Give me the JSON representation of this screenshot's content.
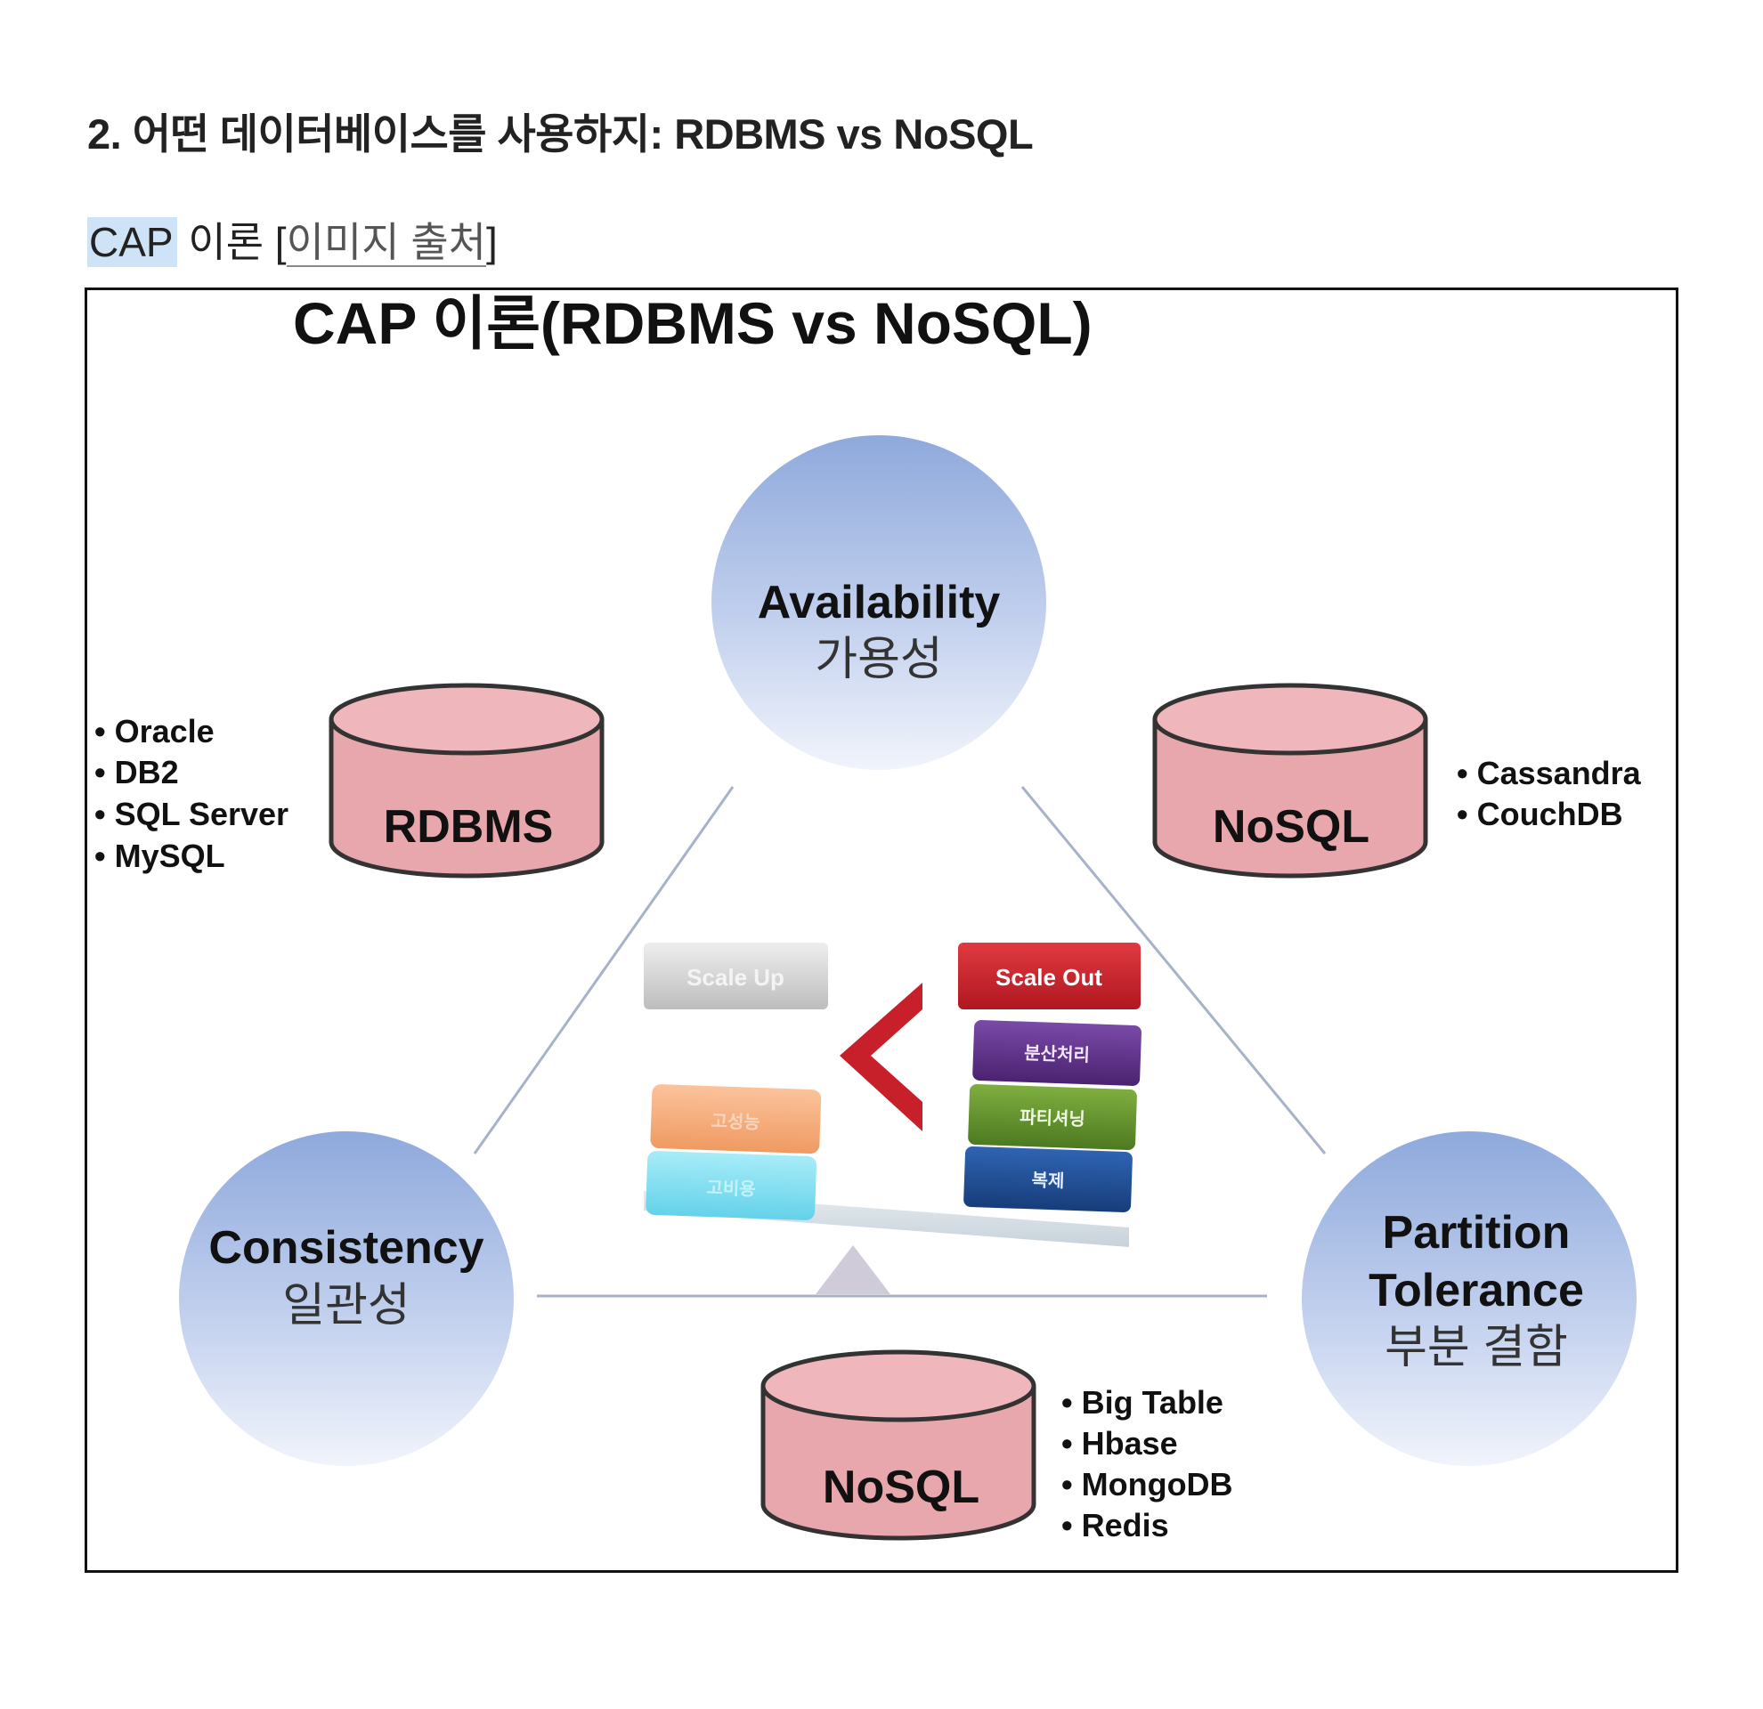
{
  "article": {
    "heading": "2. 어떤 데이터베이스를 사용하지: RDBMS vs NoSQL",
    "caption": {
      "highlighted": "CAP",
      "text": " 이론 [",
      "link": "이미지 출처",
      "close": "]"
    }
  },
  "diagram": {
    "title": "CAP 이론(RDBMS vs NoSQL)",
    "availability": {
      "en": "Availability",
      "ko": "가용성"
    },
    "consistency": {
      "en": "Consistency",
      "ko": "일관성"
    },
    "partition": {
      "en1": "Partition",
      "en2": "Tolerance",
      "ko": "부분 결함"
    },
    "rdbms": {
      "label": "RDBMS",
      "items": [
        "• Oracle",
        "• DB2",
        "• SQL Server",
        "• MySQL"
      ]
    },
    "nosql_ap": {
      "label": "NoSQL",
      "items": [
        "• Cassandra",
        "• CouchDB"
      ]
    },
    "nosql_cp": {
      "label": "NoSQL",
      "items": [
        "• Big Table",
        "• Hbase",
        "• MongoDB",
        "• Redis"
      ]
    },
    "balance": {
      "scale_up": "Scale Up",
      "scale_out": "Scale Out",
      "left_blocks": [
        "고성능",
        "고비용"
      ],
      "right_blocks": [
        "분산처리",
        "파티셔닝",
        "복제"
      ]
    }
  },
  "colors": {
    "circle_top": "#8ea9dc",
    "circle_bottom": "#eef1fa",
    "cylinder_fill": "#e8a7ac",
    "scale_out": "#c8202a",
    "block_purple": "#5b2d86",
    "block_green": "#5f8f2b",
    "block_blue": "#1f4f97",
    "block_orange": "#f6ad7d",
    "block_cyan": "#85e0f2",
    "scale_up": "#d4d4d4"
  }
}
